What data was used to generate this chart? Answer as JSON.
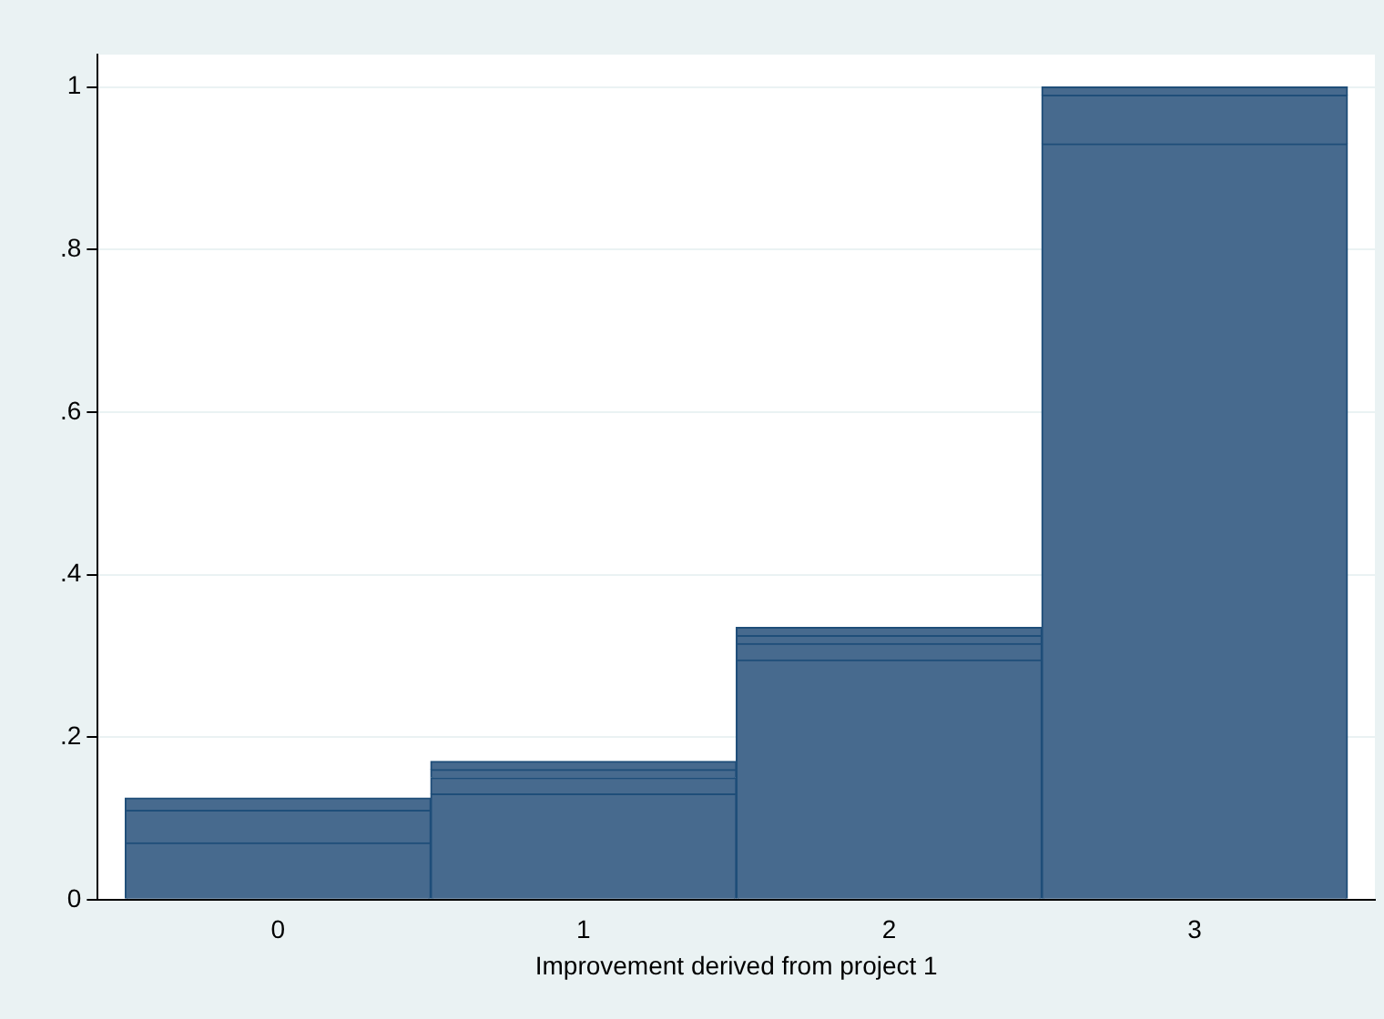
{
  "chart_data": {
    "type": "bar",
    "xlabel": "Improvement derived from project 1",
    "x": [
      0,
      1,
      2,
      3
    ],
    "xlim": [
      -0.59,
      3.59
    ],
    "xticks": [
      0,
      1,
      2,
      3
    ],
    "ylim": [
      0,
      1.04
    ],
    "yticks": [
      0,
      {
        "value": 0.2,
        "label": ".2"
      },
      {
        "value": 0.4,
        "label": ".4"
      },
      {
        "value": 0.6,
        "label": ".6"
      },
      {
        "value": 0.8,
        "label": ".8"
      },
      1
    ],
    "series": [
      {
        "color": "#476a8e",
        "values": [
          0.07,
          0.13,
          0.295,
          0.93
        ]
      },
      {
        "color": "#476a8e",
        "values": [
          0.04,
          0.02,
          0.02,
          0.06
        ]
      },
      {
        "color": "#476a8e",
        "values": [
          0.015,
          0.01,
          0.01,
          0.01
        ]
      },
      {
        "color": "#476a8e",
        "values": [
          null,
          0.01,
          0.01,
          null
        ]
      }
    ],
    "stacked": true,
    "grid": "y",
    "legend": false
  }
}
